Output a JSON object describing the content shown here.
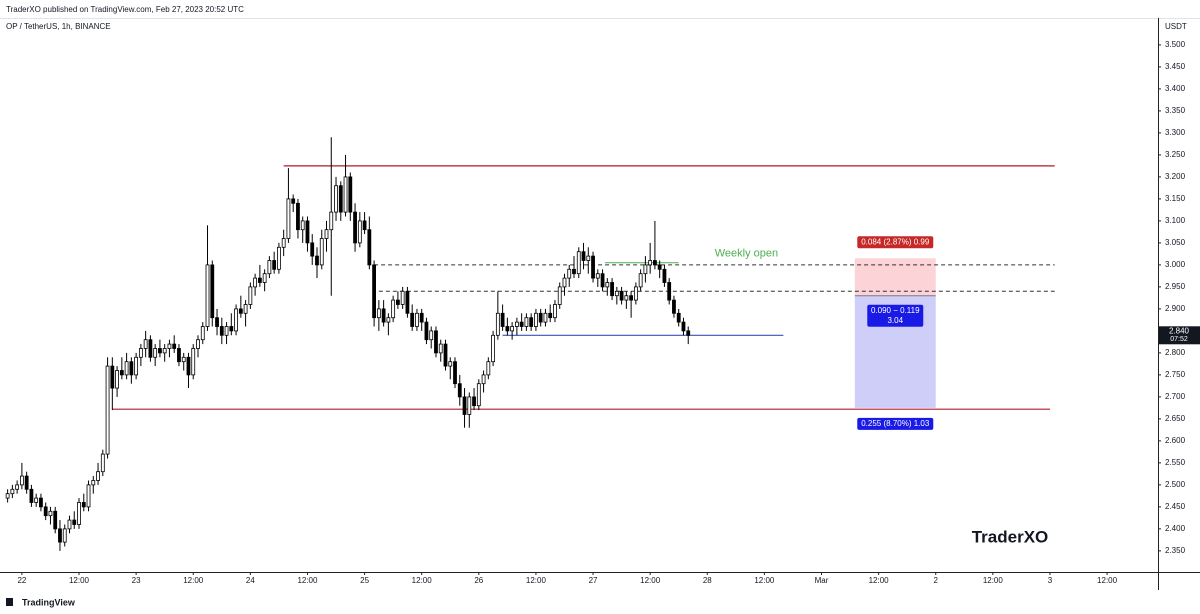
{
  "header": {
    "publisher": "TraderXO published on TradingView.com, Feb 27, 2023 20:52 UTC"
  },
  "footer": {
    "brand": "TradingView"
  },
  "chart_data": {
    "type": "candlestick",
    "title": "OP / TetherUS, 1h, BINANCE",
    "y_unit": "USDT",
    "watermark": "TraderXO",
    "up_color": "#ffffff",
    "down_color": "#000000",
    "x": [
      -3,
      -2,
      -1,
      0,
      1,
      2,
      3,
      4,
      5,
      6,
      7,
      8,
      9,
      10,
      11,
      12,
      13,
      14,
      15,
      16,
      17,
      18,
      19,
      20,
      21,
      22,
      23,
      24,
      25,
      26,
      27,
      28,
      29,
      30,
      31,
      32,
      33,
      34,
      35,
      36,
      37,
      38,
      39,
      40,
      41,
      42,
      43,
      44,
      45,
      46,
      47,
      48,
      49,
      50,
      51,
      52,
      53,
      54,
      55,
      56,
      57,
      58,
      59,
      60,
      61,
      62,
      63,
      64,
      65,
      66,
      67,
      68,
      69,
      70,
      71,
      72,
      73,
      74,
      75,
      76,
      77,
      78,
      79,
      80,
      81,
      82,
      83,
      84,
      85,
      86,
      87,
      88,
      89,
      90,
      91,
      92,
      93,
      94,
      95,
      96,
      97,
      98,
      99,
      100,
      101,
      102,
      103,
      104,
      105,
      106,
      107,
      108,
      109,
      110,
      111,
      112,
      113,
      114,
      115,
      116,
      117,
      118,
      119,
      120,
      121,
      122,
      123,
      124,
      125,
      126,
      127,
      128,
      129,
      130,
      131,
      132,
      133,
      134,
      135,
      136,
      137,
      138,
      139,
      140
    ],
    "ohlc": [
      [
        2.47,
        2.49,
        2.46,
        2.48
      ],
      [
        2.48,
        2.5,
        2.47,
        2.49
      ],
      [
        2.49,
        2.51,
        2.48,
        2.5
      ],
      [
        2.5,
        2.55,
        2.49,
        2.52
      ],
      [
        2.52,
        2.53,
        2.48,
        2.49
      ],
      [
        2.49,
        2.5,
        2.45,
        2.46
      ],
      [
        2.46,
        2.48,
        2.45,
        2.47
      ],
      [
        2.47,
        2.48,
        2.44,
        2.45
      ],
      [
        2.45,
        2.46,
        2.42,
        2.43
      ],
      [
        2.43,
        2.45,
        2.41,
        2.44
      ],
      [
        2.44,
        2.45,
        2.39,
        2.4
      ],
      [
        2.4,
        2.42,
        2.35,
        2.37
      ],
      [
        2.37,
        2.41,
        2.36,
        2.4
      ],
      [
        2.4,
        2.43,
        2.39,
        2.42
      ],
      [
        2.42,
        2.44,
        2.4,
        2.41
      ],
      [
        2.41,
        2.47,
        2.4,
        2.46
      ],
      [
        2.46,
        2.48,
        2.44,
        2.45
      ],
      [
        2.45,
        2.51,
        2.44,
        2.5
      ],
      [
        2.5,
        2.52,
        2.48,
        2.51
      ],
      [
        2.51,
        2.55,
        2.5,
        2.53
      ],
      [
        2.53,
        2.58,
        2.52,
        2.57
      ],
      [
        2.57,
        2.79,
        2.56,
        2.77
      ],
      [
        2.77,
        2.79,
        2.67,
        2.72
      ],
      [
        2.72,
        2.77,
        2.7,
        2.76
      ],
      [
        2.76,
        2.79,
        2.74,
        2.75
      ],
      [
        2.75,
        2.8,
        2.74,
        2.78
      ],
      [
        2.78,
        2.79,
        2.73,
        2.75
      ],
      [
        2.75,
        2.8,
        2.74,
        2.79
      ],
      [
        2.79,
        2.82,
        2.77,
        2.81
      ],
      [
        2.81,
        2.85,
        2.79,
        2.83
      ],
      [
        2.83,
        2.84,
        2.78,
        2.79
      ],
      [
        2.79,
        2.82,
        2.77,
        2.81
      ],
      [
        2.81,
        2.83,
        2.79,
        2.8
      ],
      [
        2.8,
        2.82,
        2.78,
        2.81
      ],
      [
        2.81,
        2.83,
        2.79,
        2.82
      ],
      [
        2.82,
        2.84,
        2.8,
        2.81
      ],
      [
        2.81,
        2.82,
        2.77,
        2.78
      ],
      [
        2.78,
        2.8,
        2.76,
        2.79
      ],
      [
        2.79,
        2.8,
        2.72,
        2.75
      ],
      [
        2.75,
        2.82,
        2.74,
        2.81
      ],
      [
        2.81,
        2.84,
        2.79,
        2.83
      ],
      [
        2.83,
        2.87,
        2.82,
        2.86
      ],
      [
        2.86,
        3.09,
        2.85,
        3.0
      ],
      [
        3.0,
        3.01,
        2.86,
        2.88
      ],
      [
        2.88,
        2.9,
        2.84,
        2.86
      ],
      [
        2.86,
        2.88,
        2.82,
        2.84
      ],
      [
        2.84,
        2.87,
        2.82,
        2.86
      ],
      [
        2.86,
        2.89,
        2.84,
        2.85
      ],
      [
        2.85,
        2.91,
        2.84,
        2.9
      ],
      [
        2.9,
        2.93,
        2.88,
        2.89
      ],
      [
        2.89,
        2.92,
        2.86,
        2.91
      ],
      [
        2.91,
        2.96,
        2.9,
        2.95
      ],
      [
        2.95,
        2.98,
        2.93,
        2.97
      ],
      [
        2.97,
        3.0,
        2.95,
        2.96
      ],
      [
        2.96,
        2.99,
        2.94,
        2.98
      ],
      [
        2.98,
        3.02,
        2.97,
        3.01
      ],
      [
        3.01,
        3.03,
        2.98,
        2.99
      ],
      [
        2.99,
        3.05,
        2.98,
        3.04
      ],
      [
        3.04,
        3.08,
        3.02,
        3.06
      ],
      [
        3.06,
        3.22,
        3.05,
        3.15
      ],
      [
        3.15,
        3.16,
        3.12,
        3.14
      ],
      [
        3.14,
        3.15,
        3.06,
        3.08
      ],
      [
        3.08,
        3.11,
        3.05,
        3.1
      ],
      [
        3.1,
        3.11,
        3.03,
        3.05
      ],
      [
        3.05,
        3.07,
        3.0,
        3.02
      ],
      [
        3.02,
        3.04,
        2.97,
        3.0
      ],
      [
        3.0,
        3.08,
        2.99,
        3.06
      ],
      [
        3.06,
        3.1,
        3.03,
        3.08
      ],
      [
        3.08,
        3.29,
        2.93,
        3.12
      ],
      [
        3.12,
        3.2,
        3.1,
        3.18
      ],
      [
        3.18,
        3.19,
        3.1,
        3.12
      ],
      [
        3.12,
        3.25,
        3.11,
        3.2
      ],
      [
        3.2,
        3.21,
        3.1,
        3.12
      ],
      [
        3.12,
        3.14,
        3.03,
        3.05
      ],
      [
        3.05,
        3.12,
        3.04,
        3.1
      ],
      [
        3.1,
        3.12,
        3.07,
        3.08
      ],
      [
        3.08,
        3.11,
        2.99,
        3.0
      ],
      [
        3.0,
        3.01,
        2.86,
        2.88
      ],
      [
        2.88,
        2.92,
        2.85,
        2.9
      ],
      [
        2.9,
        2.92,
        2.86,
        2.87
      ],
      [
        2.87,
        2.89,
        2.84,
        2.88
      ],
      [
        2.88,
        2.93,
        2.87,
        2.92
      ],
      [
        2.92,
        2.94,
        2.9,
        2.91
      ],
      [
        2.91,
        2.95,
        2.9,
        2.94
      ],
      [
        2.94,
        2.95,
        2.88,
        2.89
      ],
      [
        2.89,
        2.91,
        2.85,
        2.86
      ],
      [
        2.86,
        2.9,
        2.85,
        2.89
      ],
      [
        2.89,
        2.9,
        2.85,
        2.87
      ],
      [
        2.87,
        2.88,
        2.82,
        2.83
      ],
      [
        2.83,
        2.86,
        2.81,
        2.85
      ],
      [
        2.85,
        2.86,
        2.79,
        2.8
      ],
      [
        2.8,
        2.83,
        2.78,
        2.82
      ],
      [
        2.82,
        2.83,
        2.76,
        2.77
      ],
      [
        2.77,
        2.79,
        2.74,
        2.78
      ],
      [
        2.78,
        2.79,
        2.72,
        2.73
      ],
      [
        2.73,
        2.75,
        2.68,
        2.7
      ],
      [
        2.7,
        2.72,
        2.63,
        2.66
      ],
      [
        2.66,
        2.71,
        2.63,
        2.7
      ],
      [
        2.7,
        2.72,
        2.67,
        2.68
      ],
      [
        2.68,
        2.74,
        2.67,
        2.73
      ],
      [
        2.73,
        2.76,
        2.71,
        2.75
      ],
      [
        2.75,
        2.79,
        2.74,
        2.78
      ],
      [
        2.78,
        2.85,
        2.77,
        2.84
      ],
      [
        2.84,
        2.94,
        2.83,
        2.89
      ],
      [
        2.89,
        2.91,
        2.85,
        2.86
      ],
      [
        2.86,
        2.88,
        2.84,
        2.85
      ],
      [
        2.85,
        2.87,
        2.83,
        2.86
      ],
      [
        2.86,
        2.88,
        2.84,
        2.87
      ],
      [
        2.87,
        2.89,
        2.85,
        2.86
      ],
      [
        2.86,
        2.89,
        2.85,
        2.88
      ],
      [
        2.88,
        2.89,
        2.85,
        2.86
      ],
      [
        2.86,
        2.9,
        2.85,
        2.89
      ],
      [
        2.89,
        2.9,
        2.86,
        2.87
      ],
      [
        2.87,
        2.9,
        2.86,
        2.89
      ],
      [
        2.89,
        2.91,
        2.87,
        2.88
      ],
      [
        2.88,
        2.92,
        2.87,
        2.91
      ],
      [
        2.91,
        2.96,
        2.9,
        2.95
      ],
      [
        2.95,
        2.98,
        2.93,
        2.97
      ],
      [
        2.97,
        3.0,
        2.95,
        2.99
      ],
      [
        2.99,
        3.02,
        2.97,
        2.98
      ],
      [
        2.98,
        3.04,
        2.97,
        3.03
      ],
      [
        3.03,
        3.05,
        2.99,
        3.01
      ],
      [
        3.01,
        3.04,
        2.98,
        3.02
      ],
      [
        3.02,
        3.03,
        2.96,
        2.97
      ],
      [
        2.97,
        2.99,
        2.95,
        2.98
      ],
      [
        2.98,
        2.99,
        2.94,
        2.95
      ],
      [
        2.95,
        2.97,
        2.93,
        2.96
      ],
      [
        2.96,
        2.97,
        2.92,
        2.93
      ],
      [
        2.93,
        2.95,
        2.91,
        2.94
      ],
      [
        2.94,
        2.95,
        2.91,
        2.92
      ],
      [
        2.92,
        2.94,
        2.9,
        2.93
      ],
      [
        2.93,
        2.94,
        2.88,
        2.92
      ],
      [
        2.92,
        2.96,
        2.91,
        2.95
      ],
      [
        2.95,
        2.99,
        2.94,
        2.98
      ],
      [
        2.98,
        3.02,
        2.96,
        3.0
      ],
      [
        3.0,
        3.05,
        2.98,
        3.01
      ],
      [
        3.01,
        3.1,
        2.99,
        3.0
      ],
      [
        3.0,
        3.01,
        2.97,
        2.99
      ],
      [
        2.99,
        3.0,
        2.95,
        2.96
      ],
      [
        2.96,
        2.97,
        2.91,
        2.92
      ],
      [
        2.92,
        2.93,
        2.88,
        2.89
      ],
      [
        2.89,
        2.9,
        2.86,
        2.87
      ],
      [
        2.87,
        2.88,
        2.84,
        2.85
      ],
      [
        2.85,
        2.86,
        2.82,
        2.84
      ]
    ],
    "xlim": [
      -4.6,
      238.7
    ],
    "xticks": [
      {
        "value": 0,
        "label": "22"
      },
      {
        "value": 12,
        "label": "12:00"
      },
      {
        "value": 24,
        "label": "23"
      },
      {
        "value": 36,
        "label": "12:00"
      },
      {
        "value": 48,
        "label": "24"
      },
      {
        "value": 60,
        "label": "12:00"
      },
      {
        "value": 72,
        "label": "25"
      },
      {
        "value": 84,
        "label": "12:00"
      },
      {
        "value": 96,
        "label": "26"
      },
      {
        "value": 108,
        "label": "12:00"
      },
      {
        "value": 120,
        "label": "27"
      },
      {
        "value": 132,
        "label": "12:00"
      },
      {
        "value": 144,
        "label": "28"
      },
      {
        "value": 156,
        "label": "12:00"
      },
      {
        "value": 168,
        "label": "Mar"
      },
      {
        "value": 180,
        "label": "12:00"
      },
      {
        "value": 192,
        "label": "2"
      },
      {
        "value": 204,
        "label": "12:00"
      },
      {
        "value": 216,
        "label": "3"
      },
      {
        "value": 228,
        "label": "12:00"
      }
    ],
    "ylim": [
      2.302,
      3.568
    ],
    "yticks": [
      {
        "value": 2.35,
        "label": "2.350"
      },
      {
        "value": 2.4,
        "label": "2.400"
      },
      {
        "value": 2.45,
        "label": "2.450"
      },
      {
        "value": 2.5,
        "label": "2.500"
      },
      {
        "value": 2.55,
        "label": "2.550"
      },
      {
        "value": 2.6,
        "label": "2.600"
      },
      {
        "value": 2.65,
        "label": "2.650"
      },
      {
        "value": 2.7,
        "label": "2.700"
      },
      {
        "value": 2.75,
        "label": "2.750"
      },
      {
        "value": 2.8,
        "label": "2.800"
      },
      {
        "value": 2.85,
        "label": "2.850"
      },
      {
        "value": 2.9,
        "label": "2.900"
      },
      {
        "value": 2.95,
        "label": "2.950"
      },
      {
        "value": 3.0,
        "label": "3.000"
      },
      {
        "value": 3.05,
        "label": "3.050"
      },
      {
        "value": 3.1,
        "label": "3.100"
      },
      {
        "value": 3.15,
        "label": "3.150"
      },
      {
        "value": 3.2,
        "label": "3.200"
      },
      {
        "value": 3.25,
        "label": "3.250"
      },
      {
        "value": 3.3,
        "label": "3.300"
      },
      {
        "value": 3.35,
        "label": "3.350"
      },
      {
        "value": 3.4,
        "label": "3.400"
      },
      {
        "value": 3.45,
        "label": "3.450"
      },
      {
        "value": 3.5,
        "label": "3.500"
      }
    ],
    "levels": [
      {
        "value": 3.225,
        "from": 55,
        "to": 217,
        "color": "#b2182b",
        "style": "solid"
      },
      {
        "value": 2.672,
        "from": 19,
        "to": 216,
        "color": "#b2182b",
        "style": "solid"
      },
      {
        "value": 3.0,
        "from": 74,
        "to": 217,
        "color": "#333333",
        "style": "dashed"
      },
      {
        "value": 2.94,
        "from": 75,
        "to": 217,
        "color": "#333333",
        "style": "dashed"
      },
      {
        "value": 2.84,
        "from": 101,
        "to": 160,
        "color": "#3f51b5",
        "style": "solid"
      }
    ],
    "weekly_open": {
      "label": "Weekly open",
      "value": 3.005,
      "from": 122.5,
      "to": 138,
      "color": "#4caf50"
    },
    "position": {
      "entry": 2.93,
      "stop": 3.015,
      "target": 2.675,
      "from": 175,
      "to": 192,
      "stop_label": "0.084 (2.87%) 0.99",
      "ratio_label": "0.090 − 0.119",
      "ratio": 3.04,
      "target_label": "0.255 (8.70%) 1.03"
    },
    "last_price": {
      "value": 2.84,
      "label": "2.840",
      "countdown": "07:52"
    }
  }
}
